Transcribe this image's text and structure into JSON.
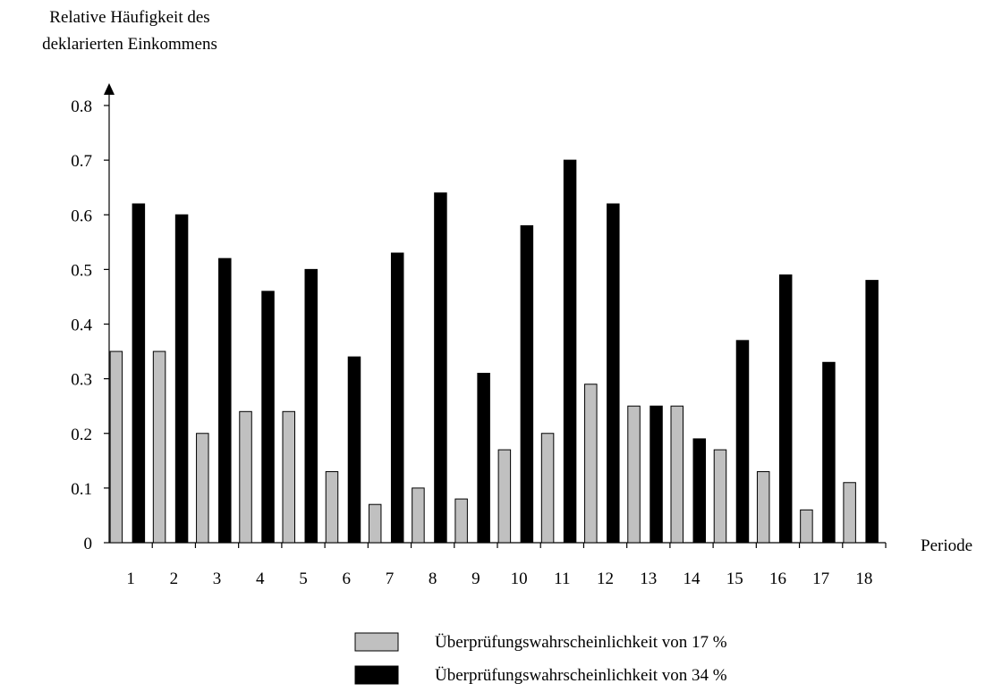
{
  "chart_data": {
    "type": "bar",
    "title": "",
    "ylabel_lines": [
      "Relative Häufigkeit des",
      "deklarierten Einkommens"
    ],
    "xlabel": "Periode",
    "ylim": [
      0,
      0.8
    ],
    "yticks": [
      "0",
      "0.1",
      "0.2",
      "0.3",
      "0.4",
      "0.5",
      "0.6",
      "0.7",
      "0.8"
    ],
    "ytick_values": [
      0,
      0.1,
      0.2,
      0.3,
      0.4,
      0.5,
      0.6,
      0.7,
      0.8
    ],
    "categories": [
      "1",
      "2",
      "3",
      "4",
      "5",
      "6",
      "7",
      "8",
      "9",
      "10",
      "11",
      "12",
      "13",
      "14",
      "15",
      "16",
      "17",
      "18"
    ],
    "grid": false,
    "legend_position": "bottom",
    "series": [
      {
        "name": "Überprüfungswahrscheinlichkeit von 17 %",
        "color": "#c0c0c0",
        "values": [
          0.35,
          0.35,
          0.2,
          0.24,
          0.24,
          0.13,
          0.07,
          0.1,
          0.08,
          0.17,
          0.2,
          0.29,
          0.25,
          0.25,
          0.17,
          0.13,
          0.06,
          0.11
        ]
      },
      {
        "name": "Überprüfungswahrscheinlichkeit von 34 %",
        "color": "#000000",
        "values": [
          0.62,
          0.6,
          0.52,
          0.46,
          0.5,
          0.34,
          0.53,
          0.64,
          0.31,
          0.58,
          0.7,
          0.62,
          0.25,
          0.19,
          0.37,
          0.49,
          0.33,
          0.48
        ]
      }
    ]
  }
}
